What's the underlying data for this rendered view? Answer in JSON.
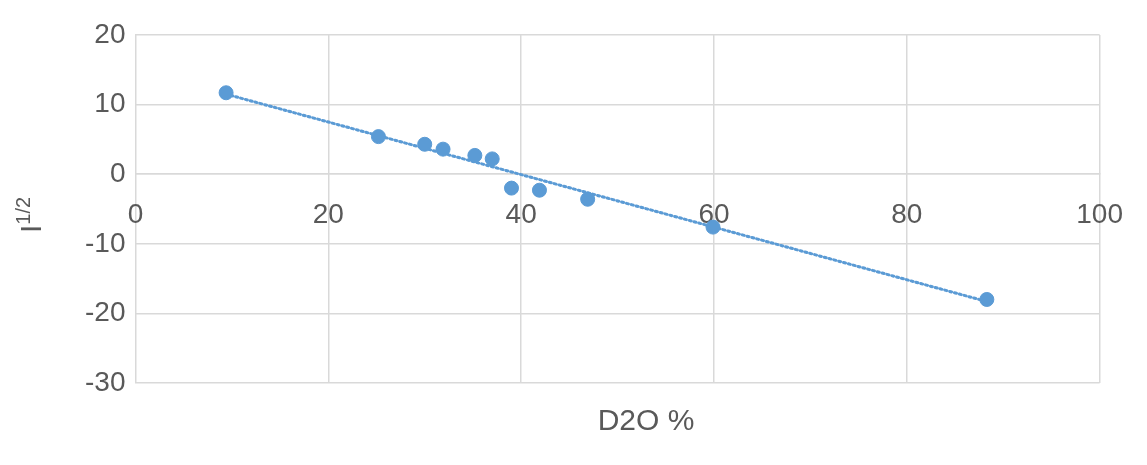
{
  "chart_data": {
    "type": "scatter",
    "xlabel": "D2O %",
    "ylabel": "I$^{1/2}$",
    "xlim": [
      0,
      100
    ],
    "xticks": [
      0,
      20,
      40,
      60,
      80,
      100
    ],
    "ylim": [
      -30,
      20
    ],
    "yticks": [
      -30,
      -20,
      -10,
      0,
      10,
      20
    ],
    "grid": true,
    "legend": false,
    "marker": "circle",
    "series": [
      {
        "color": "#5b9bd5",
        "x": [
          9.4,
          25.2,
          30.0,
          31.9,
          35.2,
          37.0,
          39.0,
          41.9,
          46.9,
          59.9,
          88.3
        ],
        "values": [
          11.7,
          5.4,
          4.3,
          3.6,
          2.7,
          2.2,
          -2.0,
          -2.3,
          -3.6,
          -7.6,
          -18.0
        ]
      },
      {
        "type": "line",
        "color": "#5b9bd5",
        "line_style": "dotted",
        "marker": "none",
        "x": [
          9.4,
          88.3
        ],
        "values": [
          11.5,
          -18.3
        ]
      }
    ]
  }
}
